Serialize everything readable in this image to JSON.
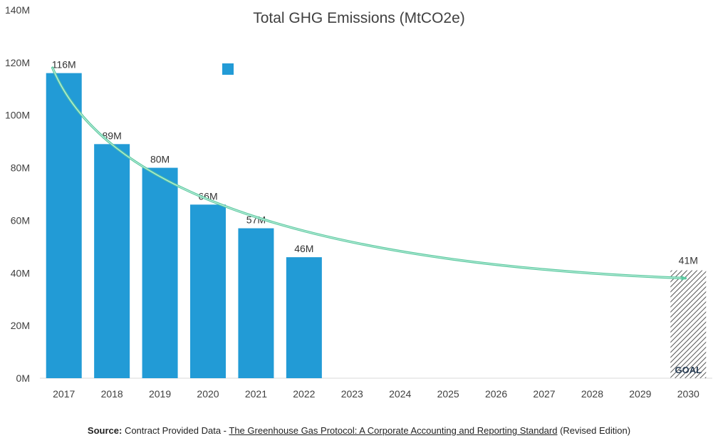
{
  "chart_data": {
    "type": "bar",
    "title": "Total GHG Emissions (MtCO2e)",
    "categories": [
      "2017",
      "2018",
      "2019",
      "2020",
      "2021",
      "2022",
      "2023",
      "2024",
      "2025",
      "2026",
      "2027",
      "2028",
      "2029",
      "2030"
    ],
    "series": [
      {
        "values": [
          116,
          89,
          80,
          66,
          57,
          46,
          null,
          null,
          null,
          null,
          null,
          null,
          null,
          null
        ],
        "color": "#229bd6"
      }
    ],
    "data_labels": [
      "116M",
      "89M",
      "80M",
      "66M",
      "57M",
      "46M",
      "",
      "",
      "",
      "",
      "",
      "",
      "",
      ""
    ],
    "goal": {
      "category": "2030",
      "value": 41,
      "label": "41M",
      "text": "GOAL",
      "pattern": "hatched"
    },
    "trend_arrow": {
      "from_category": "2017",
      "from_value": 118,
      "to_category": "2030",
      "to_value": 38,
      "color": "#5cc9a0"
    },
    "ylim": [
      0,
      140
    ],
    "yticks": [
      0,
      20,
      40,
      60,
      80,
      100,
      120,
      140
    ],
    "ytick_labels": [
      "0M",
      "20M",
      "40M",
      "60M",
      "80M",
      "100M",
      "120M",
      "140M"
    ],
    "legend": {
      "placement": "top",
      "entries": [
        ""
      ]
    },
    "grid": false
  },
  "source": {
    "label": "Source:",
    "text": " Contract Provided Data - ",
    "link": "The Greenhouse Gas Protocol: A Corporate Accounting and Reporting Standard",
    "suffix": " (Revised Edition)"
  }
}
